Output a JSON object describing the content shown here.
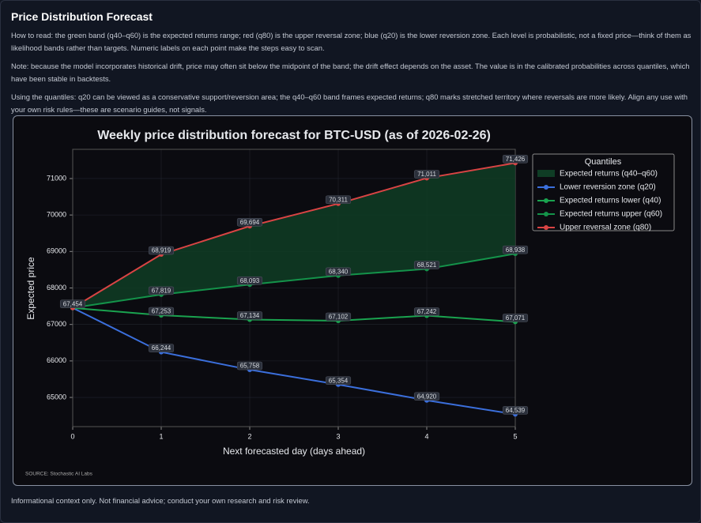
{
  "header": {
    "title": "Price Distribution Forecast"
  },
  "paragraphs": [
    "How to read: the green band (q40–q60) is the expected returns range; red (q80) is the upper reversal zone; blue (q20) is the lower reversion zone. Each level is probabilistic, not a fixed price—think of them as likelihood bands rather than targets. Numeric labels on each point make the steps easy to scan.",
    "Note: because the model incorporates historical drift, price may often sit below the midpoint of the band; the drift effect depends on the asset. The value is in the calibrated probabilities across quantiles, which have been stable in backtests.",
    "Using the quantiles: q20 can be viewed as a conservative support/reversion area; the q40–q60 band frames expected returns; q80 marks stretched territory where reversals are more likely. Align any use with your own risk rules—these are scenario guides, not signals."
  ],
  "chart_data": {
    "type": "line",
    "title": "Weekly price distribution forecast for BTC-USD (as of 2026-02-26)",
    "x_label": "Next forecasted day (days ahead)",
    "y_label": "Expected price",
    "source": "SOURCE: Stochastic AI Labs",
    "x": [
      0,
      1,
      2,
      3,
      4,
      5
    ],
    "xlim": [
      0,
      5
    ],
    "xticks": [
      0,
      1,
      2,
      3,
      4,
      5
    ],
    "ylim": [
      64200,
      71800
    ],
    "yticks": [
      65000,
      66000,
      67000,
      68000,
      69000,
      70000,
      71000
    ],
    "grid": true,
    "legend_title": "Quantiles",
    "legend_position": "upper-right",
    "band": {
      "name": "Expected returns (q40–q60)",
      "color": "#0f3d25",
      "lower": 2,
      "upper": 3
    },
    "series": [
      {
        "name": "Lower reversion zone (q20)",
        "color": "#3b6fdc",
        "values": [
          67454,
          66244,
          65758,
          65354,
          64920,
          64539
        ],
        "value_labels": [
          null,
          "66,244",
          "65,758",
          "65,354",
          "64,920",
          "64,539"
        ]
      },
      {
        "name": "Expected returns lower (q40)",
        "color": "#1aa34f",
        "values": [
          67454,
          67253,
          67134,
          67102,
          67242,
          67071
        ],
        "value_labels": [
          null,
          "67,253",
          "67,134",
          "67,102",
          "67,242",
          "67,071"
        ]
      },
      {
        "name": "Expected returns upper (q60)",
        "color": "#14934a",
        "values": [
          67454,
          67819,
          68093,
          68340,
          68521,
          68938
        ],
        "value_labels": [
          null,
          "67,819",
          "68,093",
          "68,340",
          "68,521",
          "68,938"
        ]
      },
      {
        "name": "Upper reversal zone (q80)",
        "color": "#d94444",
        "values": [
          67454,
          68919,
          69694,
          70311,
          71011,
          71426
        ],
        "value_labels": [
          "67,454",
          "68,919",
          "69,694",
          "70,311",
          "71,011",
          "71,426"
        ]
      }
    ]
  },
  "footer": "Informational context only. Not financial advice; conduct your own research and risk review."
}
